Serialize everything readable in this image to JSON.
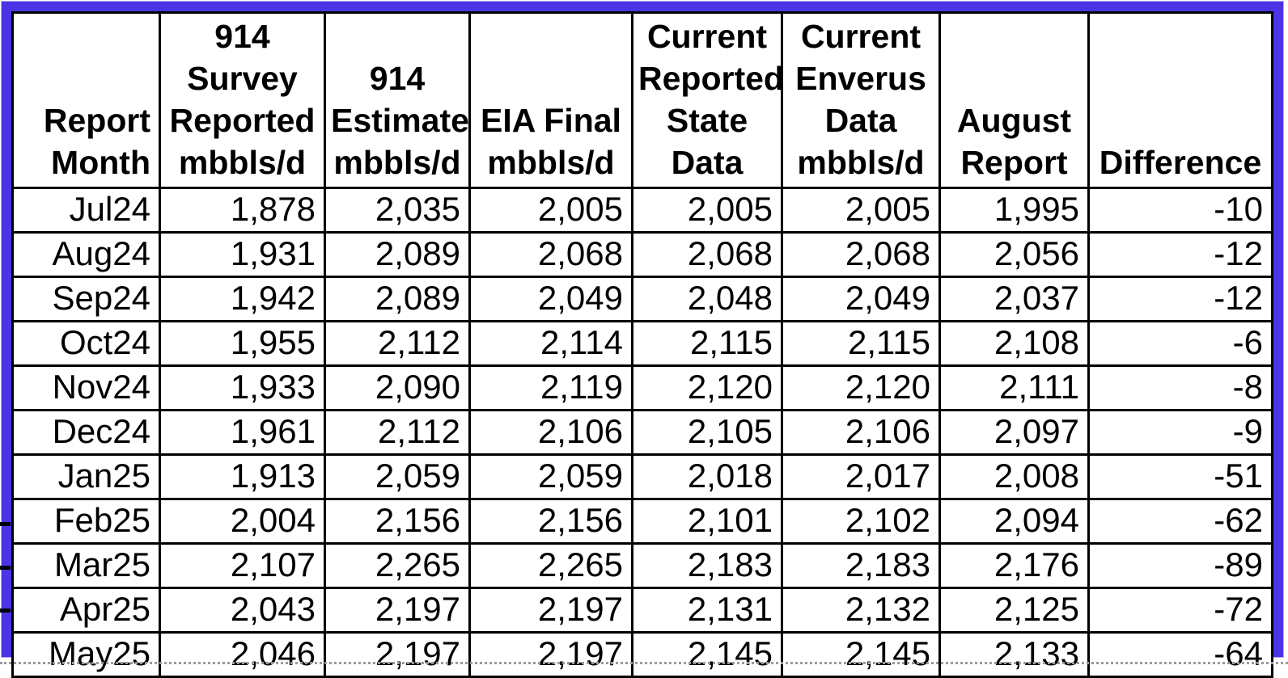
{
  "colors": {
    "highlight_border": "#4B34E6",
    "grid_line": "#000000",
    "background": "#ffffff"
  },
  "table": {
    "columns": [
      {
        "key": "report-month",
        "label": "Report\nMonth",
        "align": "right"
      },
      {
        "key": "survey-reported",
        "label": "914\nSurvey\nReported\nmbbls/d",
        "align": "center"
      },
      {
        "key": "estimate-914",
        "label": "914\nEstimate\nmbbls/d",
        "align": "center"
      },
      {
        "key": "eia-final",
        "label": "EIA Final\nmbbls/d",
        "align": "center"
      },
      {
        "key": "state-data",
        "label": "Current\nReported\nState\nData",
        "align": "center"
      },
      {
        "key": "enverus-data",
        "label": "Current\nEnverus\nData\nmbbls/d",
        "align": "center"
      },
      {
        "key": "august-report",
        "label": "August\nReport",
        "align": "center"
      },
      {
        "key": "difference",
        "label": "Difference",
        "align": "center"
      }
    ],
    "rows": [
      {
        "month": "Jul24",
        "values": [
          "1,878",
          "2,035",
          "2,005",
          "2,005",
          "2,005",
          "1,995",
          "-10"
        ]
      },
      {
        "month": "Aug24",
        "values": [
          "1,931",
          "2,089",
          "2,068",
          "2,068",
          "2,068",
          "2,056",
          "-12"
        ]
      },
      {
        "month": "Sep24",
        "values": [
          "1,942",
          "2,089",
          "2,049",
          "2,048",
          "2,049",
          "2,037",
          "-12"
        ]
      },
      {
        "month": "Oct24",
        "values": [
          "1,955",
          "2,112",
          "2,114",
          "2,115",
          "2,115",
          "2,108",
          "-6"
        ]
      },
      {
        "month": "Nov24",
        "values": [
          "1,933",
          "2,090",
          "2,119",
          "2,120",
          "2,120",
          "2,111",
          "-8"
        ]
      },
      {
        "month": "Dec24",
        "values": [
          "1,961",
          "2,112",
          "2,106",
          "2,105",
          "2,106",
          "2,097",
          "-9"
        ]
      },
      {
        "month": "Jan25",
        "values": [
          "1,913",
          "2,059",
          "2,059",
          "2,018",
          "2,017",
          "2,008",
          "-51"
        ]
      },
      {
        "month": "Feb25",
        "values": [
          "2,004",
          "2,156",
          "2,156",
          "2,101",
          "2,102",
          "2,094",
          "-62"
        ]
      },
      {
        "month": "Mar25",
        "values": [
          "2,107",
          "2,265",
          "2,265",
          "2,183",
          "2,183",
          "2,176",
          "-89"
        ]
      },
      {
        "month": "Apr25",
        "values": [
          "2,043",
          "2,197",
          "2,197",
          "2,131",
          "2,132",
          "2,125",
          "-72"
        ]
      },
      {
        "month": "May25",
        "values": [
          "2,046",
          "2,197",
          "2,197",
          "2,145",
          "2,145",
          "2,133",
          "-64"
        ]
      }
    ]
  },
  "chart_data": {
    "type": "table",
    "columns": [
      "Report Month",
      "914 Survey Reported mbbls/d",
      "914 Estimate mbbls/d",
      "EIA Final mbbls/d",
      "Current Reported State Data",
      "Current Enverus Data mbbls/d",
      "August Report",
      "Difference"
    ],
    "rows": [
      [
        "Jul24",
        1878,
        2035,
        2005,
        2005,
        2005,
        1995,
        -10
      ],
      [
        "Aug24",
        1931,
        2089,
        2068,
        2068,
        2068,
        2056,
        -12
      ],
      [
        "Sep24",
        1942,
        2089,
        2049,
        2048,
        2049,
        2037,
        -12
      ],
      [
        "Oct24",
        1955,
        2112,
        2114,
        2115,
        2115,
        2108,
        -6
      ],
      [
        "Nov24",
        1933,
        2090,
        2119,
        2120,
        2120,
        2111,
        -8
      ],
      [
        "Dec24",
        1961,
        2112,
        2106,
        2105,
        2106,
        2097,
        -9
      ],
      [
        "Jan25",
        1913,
        2059,
        2059,
        2018,
        2017,
        2008,
        -51
      ],
      [
        "Feb25",
        2004,
        2156,
        2156,
        2101,
        2102,
        2094,
        -62
      ],
      [
        "Mar25",
        2107,
        2265,
        2265,
        2183,
        2183,
        2176,
        -89
      ],
      [
        "Apr25",
        2043,
        2197,
        2197,
        2131,
        2132,
        2125,
        -72
      ],
      [
        "May25",
        2046,
        2197,
        2197,
        2145,
        2145,
        2133,
        -64
      ]
    ]
  }
}
